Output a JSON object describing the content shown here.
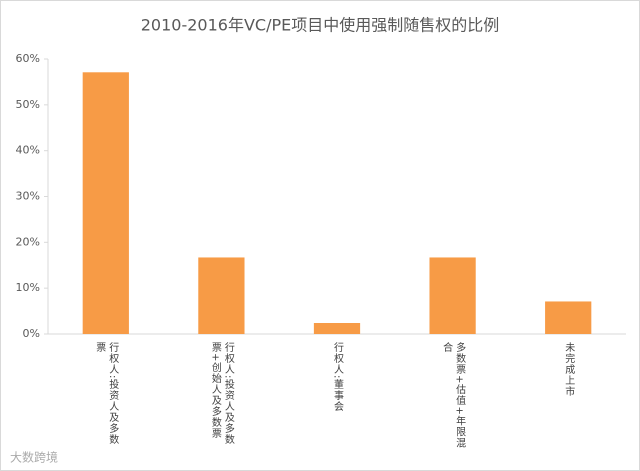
{
  "chart_data": {
    "type": "bar",
    "title": "2010-2016年VC/PE项目中使用强制随售权的比例",
    "categories": [
      "行权人:投资人及多数票",
      "行权人:投资人及多数票+创始人及多数票",
      "行权人:董事会",
      "多数票+估值+年限混合",
      "未完成上市"
    ],
    "values": [
      57.1,
      16.7,
      2.4,
      16.7,
      7.1
    ],
    "color": "#f79b46",
    "ylim": [
      0,
      60
    ],
    "yticks": [
      {
        "value": 0,
        "label": "0%"
      },
      {
        "value": 10,
        "label": "10%"
      },
      {
        "value": 20,
        "label": "20%"
      },
      {
        "value": 30,
        "label": "30%"
      },
      {
        "value": 40,
        "label": "40%"
      },
      {
        "value": 50,
        "label": "50%"
      },
      {
        "value": 60,
        "label": "60%"
      }
    ],
    "grid": false,
    "watermark": "大数跨境"
  }
}
